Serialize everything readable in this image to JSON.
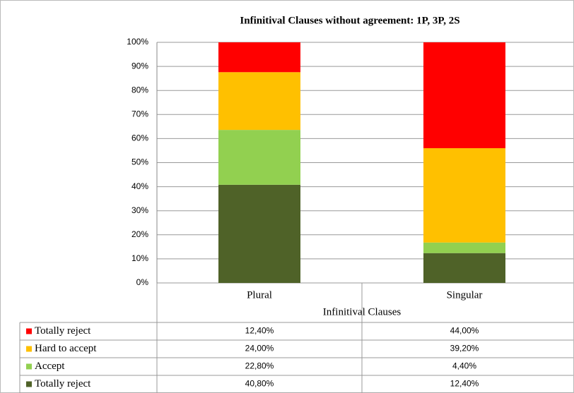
{
  "chart_data": {
    "type": "stacked_bar",
    "title": "Infinitival Clauses without agreement: 1P, 3P, 2S",
    "x_label": "Infinitival Clauses",
    "categories": [
      "Plural",
      "Singular"
    ],
    "series": [
      {
        "name": "Totally reject",
        "color": "#ff0000",
        "values": [
          12.4,
          44.0
        ],
        "value_labels": [
          "12,40%",
          "44,00%"
        ]
      },
      {
        "name": "Hard to accept",
        "color": "#ffc000",
        "values": [
          24.0,
          39.2
        ],
        "value_labels": [
          "24,00%",
          "39,20%"
        ]
      },
      {
        "name": "Accept",
        "color": "#92d050",
        "values": [
          22.8,
          4.4
        ],
        "value_labels": [
          "22,80%",
          "4,40%"
        ]
      },
      {
        "name": "Totally reject",
        "color": "#4f6228",
        "values": [
          40.8,
          12.4
        ],
        "value_labels": [
          "40,80%",
          "12,40%"
        ]
      }
    ],
    "ylim": [
      0,
      100
    ],
    "yticks": [
      {
        "value": 0,
        "label": "0%"
      },
      {
        "value": 10,
        "label": "10%"
      },
      {
        "value": 20,
        "label": "20%"
      },
      {
        "value": 30,
        "label": "30%"
      },
      {
        "value": 40,
        "label": "40%"
      },
      {
        "value": 50,
        "label": "50%"
      },
      {
        "value": 60,
        "label": "60%"
      },
      {
        "value": 70,
        "label": "70%"
      },
      {
        "value": 80,
        "label": "80%"
      },
      {
        "value": 90,
        "label": "90%"
      },
      {
        "value": 100,
        "label": "100%"
      }
    ],
    "grid": true
  }
}
